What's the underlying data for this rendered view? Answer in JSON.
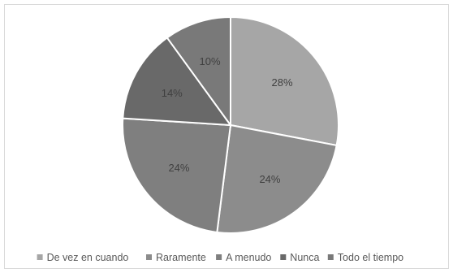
{
  "chart_data": {
    "type": "pie",
    "title": "",
    "categories": [
      "De vez en cuando",
      "Raramente",
      "A menudo",
      "Nunca",
      "Todo el tiempo"
    ],
    "values": [
      28,
      24,
      24,
      14,
      10
    ],
    "labels": [
      "28%",
      "24%",
      "24%",
      "14%",
      "10%"
    ],
    "colors": [
      "#a6a6a6",
      "#8c8c8c",
      "#7f7f7f",
      "#696969",
      "#797979"
    ],
    "start_angle_deg": 0,
    "direction": "clockwise",
    "legend_position": "bottom"
  }
}
